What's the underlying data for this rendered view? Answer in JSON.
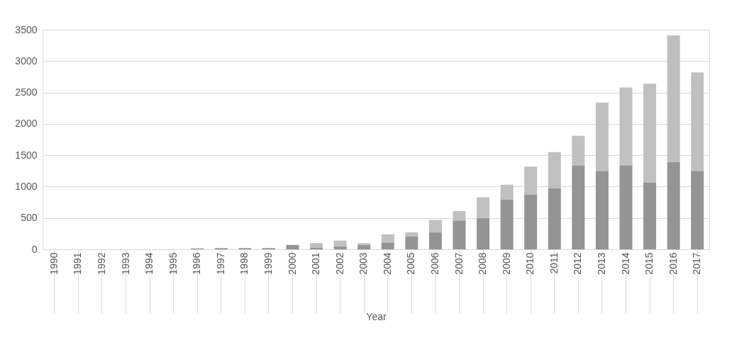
{
  "chart_data": {
    "type": "bar",
    "xlabel": "Year",
    "stacked": true,
    "grid": "y",
    "legend": false,
    "categories": [
      "1990",
      "1991",
      "1992",
      "1993",
      "1994",
      "1995",
      "1996",
      "1997",
      "1998",
      "1999",
      "2000",
      "2001",
      "2002",
      "2003",
      "2004",
      "2005",
      "2006",
      "2007",
      "2008",
      "2009",
      "2010",
      "2011",
      "2012",
      "2013",
      "2014",
      "2015",
      "2016",
      "2017"
    ],
    "series": [
      {
        "color": "#949494",
        "values": [
          0,
          0,
          0,
          0,
          0,
          0,
          10,
          20,
          20,
          20,
          70,
          30,
          50,
          70,
          110,
          210,
          270,
          460,
          500,
          790,
          870,
          970,
          1340,
          1250,
          1340,
          1060,
          1390,
          1250
        ]
      },
      {
        "color": "#c0c0c0",
        "values": [
          0,
          0,
          0,
          0,
          0,
          0,
          10,
          null,
          null,
          null,
          null,
          70,
          90,
          30,
          130,
          60,
          200,
          150,
          330,
          240,
          450,
          580,
          470,
          1090,
          1240,
          1580,
          2020,
          1570
        ]
      }
    ],
    "ylim": [
      0,
      3500
    ],
    "yticks": [
      0,
      500,
      1000,
      1500,
      2000,
      2500,
      3000,
      3500
    ]
  }
}
